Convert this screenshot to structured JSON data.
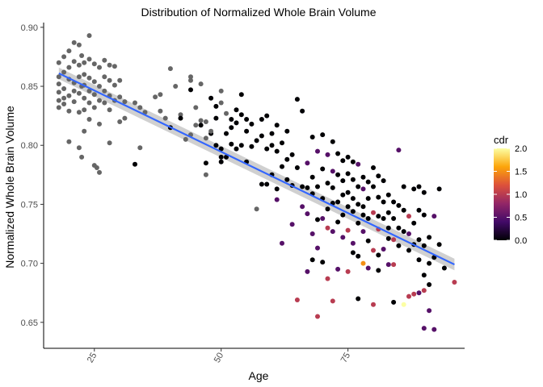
{
  "chart_data": {
    "type": "scatter",
    "title": "Distribution of Normalized Whole Brain Volume",
    "xlabel": "Age",
    "ylabel": "Normalized Whole Brain Volume",
    "xlim": [
      15,
      98
    ],
    "ylim": [
      0.628,
      0.904
    ],
    "x_ticks": [
      25,
      50,
      75
    ],
    "x_tick_labels": [
      "25",
      "50",
      "75"
    ],
    "y_ticks": [
      0.65,
      0.7,
      0.75,
      0.8,
      0.85,
      0.9
    ],
    "y_tick_labels": [
      "0.65",
      "0.70",
      "0.75",
      "0.80",
      "0.85",
      "0.90"
    ],
    "grid": false,
    "legend": {
      "title": "cdr",
      "placement": "right",
      "type": "colorbar",
      "range": [
        0,
        2
      ],
      "ticks": [
        0.0,
        0.5,
        1.0,
        1.5,
        2.0
      ],
      "tick_labels": [
        "0.0",
        "0.5",
        "1.0",
        "1.5",
        "2.0"
      ],
      "colors": [
        "#000004",
        "#420a68",
        "#932667",
        "#dd513a",
        "#fca50a",
        "#fcffa4"
      ]
    },
    "missing_cdr_color": "#666666",
    "trend": {
      "method": "linear fit",
      "x": [
        18,
        96
      ],
      "y": [
        0.861,
        0.699
      ],
      "color": "#3366ff",
      "band_color": "#c8c8c8"
    },
    "points": [
      [
        18,
        0.87,
        null
      ],
      [
        18,
        0.858,
        null
      ],
      [
        18,
        0.852,
        null
      ],
      [
        18,
        0.845,
        null
      ],
      [
        18,
        0.838,
        null
      ],
      [
        18,
        0.832,
        null
      ],
      [
        19,
        0.875,
        null
      ],
      [
        19,
        0.862,
        null
      ],
      [
        19,
        0.848,
        null
      ],
      [
        19,
        0.84,
        null
      ],
      [
        19,
        0.835,
        null
      ],
      [
        20,
        0.88,
        null
      ],
      [
        20,
        0.866,
        null
      ],
      [
        20,
        0.856,
        null
      ],
      [
        20,
        0.842,
        null
      ],
      [
        20,
        0.829,
        null
      ],
      [
        20,
        0.803,
        null
      ],
      [
        21,
        0.887,
        null
      ],
      [
        21,
        0.871,
        null
      ],
      [
        21,
        0.853,
        null
      ],
      [
        21,
        0.846,
        null
      ],
      [
        21,
        0.837,
        null
      ],
      [
        22,
        0.885,
        null
      ],
      [
        22,
        0.868,
        null
      ],
      [
        22,
        0.858,
        null
      ],
      [
        22,
        0.844,
        null
      ],
      [
        22,
        0.828,
        null
      ],
      [
        22,
        0.798,
        null
      ],
      [
        22.5,
        0.876,
        null
      ],
      [
        22.5,
        0.85,
        null
      ],
      [
        22.5,
        0.79,
        null
      ],
      [
        23,
        0.87,
        null
      ],
      [
        23,
        0.86,
        null
      ],
      [
        23,
        0.851,
        null
      ],
      [
        23,
        0.84,
        null
      ],
      [
        23,
        0.83,
        null
      ],
      [
        23,
        0.812,
        null
      ],
      [
        24,
        0.893,
        null
      ],
      [
        24,
        0.873,
        null
      ],
      [
        24,
        0.857,
        null
      ],
      [
        24,
        0.846,
        null
      ],
      [
        24,
        0.836,
        null
      ],
      [
        24,
        0.822,
        null
      ],
      [
        25,
        0.869,
        null
      ],
      [
        25,
        0.854,
        null
      ],
      [
        25,
        0.843,
        null
      ],
      [
        25,
        0.832,
        null
      ],
      [
        25,
        0.783,
        null
      ],
      [
        25.5,
        0.781,
        null
      ],
      [
        26,
        0.777,
        null
      ],
      [
        26,
        0.866,
        null
      ],
      [
        26,
        0.85,
        null
      ],
      [
        26,
        0.838,
        null
      ],
      [
        26,
        0.818,
        null
      ],
      [
        27,
        0.872,
        null
      ],
      [
        27,
        0.858,
        null
      ],
      [
        27,
        0.846,
        null
      ],
      [
        27,
        0.836,
        null
      ],
      [
        28,
        0.868,
        null
      ],
      [
        28,
        0.855,
        null
      ],
      [
        28,
        0.842,
        null
      ],
      [
        28,
        0.83,
        null
      ],
      [
        28,
        0.802,
        null
      ],
      [
        29,
        0.867,
        null
      ],
      [
        29,
        0.851,
        null
      ],
      [
        29,
        0.838,
        null
      ],
      [
        30,
        0.855,
        null
      ],
      [
        30,
        0.841,
        null
      ],
      [
        30,
        0.82,
        null
      ],
      [
        31,
        0.837,
        null
      ],
      [
        31,
        0.823,
        null
      ],
      [
        33,
        0.836,
        null
      ],
      [
        33,
        0.784,
        0
      ],
      [
        34,
        0.832,
        null
      ],
      [
        34,
        0.798,
        null
      ],
      [
        35,
        0.828,
        null
      ],
      [
        37,
        0.841,
        null
      ],
      [
        38,
        0.843,
        null
      ],
      [
        38,
        0.829,
        null
      ],
      [
        39,
        0.823,
        null
      ],
      [
        40,
        0.865,
        null
      ],
      [
        40,
        0.815,
        0
      ],
      [
        41,
        0.85,
        null
      ],
      [
        42,
        0.826,
        null
      ],
      [
        42,
        0.823,
        0
      ],
      [
        43,
        0.805,
        null
      ],
      [
        44,
        0.858,
        null
      ],
      [
        44,
        0.847,
        0
      ],
      [
        44,
        0.855,
        null
      ],
      [
        44,
        0.809,
        null
      ],
      [
        45,
        0.817,
        null
      ],
      [
        45,
        0.832,
        null
      ],
      [
        46,
        0.852,
        null
      ],
      [
        46,
        0.821,
        null
      ],
      [
        46,
        0.817,
        0
      ],
      [
        47,
        0.806,
        null
      ],
      [
        47,
        0.82,
        null
      ],
      [
        47,
        0.775,
        null
      ],
      [
        47,
        0.785,
        0
      ],
      [
        48,
        0.84,
        0
      ],
      [
        48,
        0.81,
        0
      ],
      [
        48,
        0.812,
        null
      ],
      [
        49,
        0.8,
        0
      ],
      [
        49,
        0.823,
        0
      ],
      [
        49,
        0.833,
        0
      ],
      [
        50,
        0.846,
        null
      ],
      [
        50,
        0.836,
        null
      ],
      [
        50,
        0.797,
        0
      ],
      [
        50,
        0.79,
        0
      ],
      [
        50,
        0.786,
        0
      ],
      [
        51,
        0.827,
        null
      ],
      [
        51,
        0.81,
        0
      ],
      [
        51,
        0.79,
        0
      ],
      [
        52,
        0.822,
        0
      ],
      [
        52,
        0.815,
        0
      ],
      [
        52,
        0.801,
        0
      ],
      [
        53,
        0.83,
        0
      ],
      [
        53,
        0.819,
        0
      ],
      [
        53,
        0.797,
        0
      ],
      [
        54,
        0.843,
        0
      ],
      [
        54,
        0.826,
        0
      ],
      [
        54,
        0.8,
        0
      ],
      [
        55,
        0.822,
        0
      ],
      [
        55,
        0.812,
        0
      ],
      [
        55,
        0.786,
        0
      ],
      [
        56,
        0.818,
        0
      ],
      [
        56,
        0.799,
        0
      ],
      [
        57,
        0.804,
        0
      ],
      [
        57,
        0.746,
        null
      ],
      [
        58,
        0.822,
        0
      ],
      [
        58,
        0.808,
        0
      ],
      [
        58,
        0.767,
        0
      ],
      [
        59,
        0.825,
        0
      ],
      [
        59,
        0.797,
        0
      ],
      [
        59,
        0.767,
        0
      ],
      [
        60,
        0.81,
        0
      ],
      [
        60,
        0.8,
        0
      ],
      [
        60,
        0.775,
        0
      ],
      [
        61,
        0.817,
        0
      ],
      [
        61,
        0.795,
        0
      ],
      [
        61,
        0.763,
        0
      ],
      [
        61,
        0.754,
        0.5
      ],
      [
        62,
        0.802,
        0
      ],
      [
        62,
        0.782,
        0
      ],
      [
        62,
        0.717,
        0.5
      ],
      [
        63,
        0.812,
        0
      ],
      [
        63,
        0.788,
        0
      ],
      [
        63,
        0.771,
        0
      ],
      [
        64,
        0.792,
        0
      ],
      [
        64,
        0.766,
        0
      ],
      [
        64,
        0.733,
        0.5
      ],
      [
        65,
        0.839,
        0
      ],
      [
        65,
        0.781,
        0
      ],
      [
        65,
        0.669,
        1.0
      ],
      [
        66,
        0.829,
        0
      ],
      [
        66,
        0.765,
        0
      ],
      [
        66,
        0.748,
        0.5
      ],
      [
        67,
        0.785,
        0.5
      ],
      [
        67,
        0.764,
        0
      ],
      [
        67,
        0.742,
        0.5
      ],
      [
        67,
        0.693,
        0.5
      ],
      [
        68,
        0.807,
        0
      ],
      [
        68,
        0.773,
        0
      ],
      [
        68,
        0.759,
        0
      ],
      [
        68,
        0.725,
        0.5
      ],
      [
        68,
        0.703,
        0
      ],
      [
        69,
        0.795,
        0.5
      ],
      [
        69,
        0.765,
        0
      ],
      [
        69,
        0.737,
        0
      ],
      [
        69,
        0.713,
        0.5
      ],
      [
        69,
        0.655,
        1.0
      ],
      [
        70,
        0.809,
        0
      ],
      [
        70,
        0.78,
        0
      ],
      [
        70,
        0.755,
        0
      ],
      [
        70,
        0.738,
        0.5
      ],
      [
        70,
        0.701,
        0
      ],
      [
        71,
        0.792,
        0.5
      ],
      [
        71,
        0.768,
        0
      ],
      [
        71,
        0.746,
        0
      ],
      [
        71,
        0.73,
        1.0
      ],
      [
        71,
        0.687,
        1.0
      ],
      [
        72,
        0.803,
        0
      ],
      [
        72,
        0.778,
        0.5
      ],
      [
        72,
        0.764,
        0
      ],
      [
        72,
        0.751,
        0
      ],
      [
        72,
        0.727,
        0.5
      ],
      [
        72,
        0.668,
        1.0
      ],
      [
        73,
        0.793,
        0
      ],
      [
        73,
        0.775,
        0
      ],
      [
        73,
        0.752,
        0
      ],
      [
        73,
        0.735,
        0
      ],
      [
        73,
        0.695,
        0.5
      ],
      [
        74,
        0.787,
        0
      ],
      [
        74,
        0.77,
        0
      ],
      [
        74,
        0.758,
        0
      ],
      [
        74,
        0.741,
        0
      ],
      [
        74,
        0.722,
        0.5
      ],
      [
        75,
        0.79,
        0
      ],
      [
        75,
        0.776,
        0
      ],
      [
        75,
        0.76,
        0
      ],
      [
        75,
        0.748,
        0
      ],
      [
        75,
        0.728,
        1.0
      ],
      [
        75,
        0.693,
        1.0
      ],
      [
        76,
        0.786,
        0
      ],
      [
        76,
        0.771,
        0
      ],
      [
        76,
        0.755,
        0
      ],
      [
        76,
        0.744,
        0
      ],
      [
        76,
        0.717,
        0.5
      ],
      [
        76,
        0.709,
        0
      ],
      [
        77,
        0.784,
        0.5
      ],
      [
        77,
        0.765,
        0
      ],
      [
        77,
        0.75,
        0
      ],
      [
        77,
        0.734,
        0
      ],
      [
        77,
        0.706,
        0
      ],
      [
        77,
        0.67,
        0
      ],
      [
        78,
        0.773,
        0
      ],
      [
        78,
        0.763,
        0.5
      ],
      [
        78,
        0.748,
        0
      ],
      [
        78,
        0.741,
        0
      ],
      [
        78,
        0.727,
        0.5
      ],
      [
        78,
        0.7,
        1.5
      ],
      [
        79,
        0.769,
        0
      ],
      [
        79,
        0.755,
        0
      ],
      [
        79,
        0.738,
        0
      ],
      [
        79,
        0.719,
        0
      ],
      [
        79,
        0.696,
        0.5
      ],
      [
        80,
        0.781,
        0
      ],
      [
        80,
        0.765,
        0
      ],
      [
        80,
        0.743,
        1.0
      ],
      [
        80,
        0.711,
        1.0
      ],
      [
        80,
        0.665,
        1.0
      ],
      [
        81,
        0.774,
        0
      ],
      [
        81,
        0.756,
        0
      ],
      [
        81,
        0.74,
        0
      ],
      [
        81,
        0.729,
        1.0
      ],
      [
        81,
        0.707,
        0
      ],
      [
        81,
        0.694,
        0
      ],
      [
        82,
        0.77,
        0
      ],
      [
        82,
        0.752,
        0
      ],
      [
        82,
        0.738,
        0
      ],
      [
        82,
        0.712,
        0.5
      ],
      [
        83,
        0.758,
        0
      ],
      [
        83,
        0.743,
        0
      ],
      [
        83,
        0.73,
        0
      ],
      [
        83,
        0.721,
        0
      ],
      [
        83,
        0.699,
        0.5
      ],
      [
        84,
        0.752,
        0
      ],
      [
        84,
        0.738,
        0
      ],
      [
        84,
        0.72,
        1.0
      ],
      [
        84,
        0.699,
        1.0
      ],
      [
        84,
        0.667,
        0
      ],
      [
        85,
        0.796,
        0.5
      ],
      [
        85,
        0.749,
        0
      ],
      [
        85,
        0.73,
        0
      ],
      [
        85,
        0.715,
        0
      ],
      [
        86,
        0.765,
        0
      ],
      [
        86,
        0.745,
        0
      ],
      [
        86,
        0.727,
        0
      ],
      [
        86,
        0.665,
        2.0
      ],
      [
        87,
        0.74,
        1.0
      ],
      [
        87,
        0.725,
        0.5
      ],
      [
        87,
        0.711,
        0
      ],
      [
        87,
        0.672,
        1.0
      ],
      [
        88,
        0.763,
        0
      ],
      [
        88,
        0.734,
        0
      ],
      [
        88,
        0.716,
        0
      ],
      [
        88,
        0.674,
        1.0
      ],
      [
        89,
        0.765,
        0
      ],
      [
        89,
        0.745,
        0
      ],
      [
        89,
        0.72,
        0
      ],
      [
        89,
        0.703,
        0
      ],
      [
        89,
        0.675,
        0.5
      ],
      [
        90,
        0.76,
        0
      ],
      [
        90,
        0.741,
        0
      ],
      [
        90,
        0.715,
        0
      ],
      [
        90,
        0.69,
        0
      ],
      [
        90,
        0.677,
        1.0
      ],
      [
        90,
        0.645,
        0.5
      ],
      [
        91,
        0.722,
        0
      ],
      [
        91,
        0.7,
        0
      ],
      [
        91,
        0.682,
        0
      ],
      [
        91,
        0.66,
        0.5
      ],
      [
        92,
        0.74,
        0.5
      ],
      [
        92,
        0.705,
        0
      ],
      [
        92,
        0.644,
        0.5
      ],
      [
        93,
        0.763,
        0
      ],
      [
        93,
        0.716,
        0
      ],
      [
        94,
        0.696,
        0
      ],
      [
        96,
        0.684,
        1.0
      ]
    ]
  }
}
